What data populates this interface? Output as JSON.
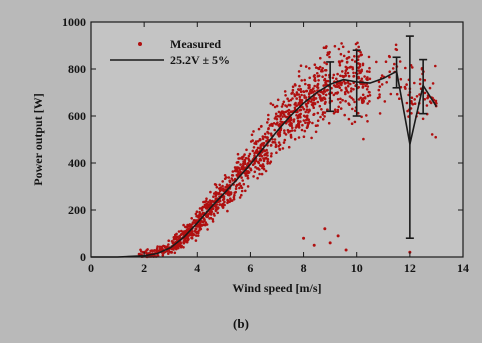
{
  "chart_data": {
    "type": "scatter",
    "xlabel": "Wind speed [m/s]",
    "ylabel": "Power output [W]",
    "xlim": [
      0,
      14
    ],
    "ylim": [
      0,
      1000
    ],
    "xticks": [
      0,
      2,
      4,
      6,
      8,
      10,
      12,
      14
    ],
    "yticks": [
      0,
      200,
      400,
      600,
      800,
      1000
    ],
    "grid": false,
    "legend_position": "top-left",
    "caption": "(b)",
    "colors": {
      "measured": "#b01010",
      "fit": "#1a1a1a",
      "background": "#b9b9b9",
      "plot_area": "#c4c4c4"
    },
    "series": [
      {
        "name": "Measured",
        "kind": "scatter",
        "description_points": [
          [
            2.0,
            5
          ],
          [
            2.5,
            15
          ],
          [
            3.0,
            40
          ],
          [
            3.5,
            85
          ],
          [
            4.0,
            145
          ],
          [
            4.5,
            210
          ],
          [
            5.0,
            270
          ],
          [
            5.5,
            330
          ],
          [
            6.0,
            395
          ],
          [
            6.5,
            465
          ],
          [
            7.0,
            535
          ],
          [
            7.5,
            600
          ],
          [
            8.0,
            655
          ],
          [
            8.5,
            700
          ],
          [
            9.0,
            735
          ],
          [
            9.5,
            755
          ],
          [
            10.0,
            745
          ],
          [
            10.5,
            740
          ],
          [
            11.0,
            760
          ],
          [
            11.5,
            790
          ],
          [
            12.0,
            720
          ],
          [
            12.5,
            710
          ],
          [
            13.0,
            640
          ]
        ],
        "outliers": [
          [
            8.0,
            80
          ],
          [
            8.4,
            50
          ],
          [
            9.0,
            60
          ],
          [
            9.3,
            90
          ],
          [
            9.6,
            30
          ],
          [
            8.8,
            120
          ],
          [
            12.0,
            20
          ]
        ]
      },
      {
        "name": "25.2V ± 5%",
        "kind": "line",
        "x": [
          0,
          1,
          2,
          2.5,
          3,
          3.5,
          4,
          4.5,
          5,
          5.5,
          6,
          6.5,
          7,
          7.5,
          8,
          8.5,
          9,
          9.5,
          10,
          10.5,
          11,
          11.5,
          12,
          12.5,
          13
        ],
        "y": [
          0,
          0,
          5,
          15,
          40,
          85,
          145,
          210,
          270,
          330,
          395,
          465,
          535,
          600,
          655,
          700,
          735,
          755,
          745,
          740,
          760,
          790,
          480,
          730,
          640
        ],
        "error_bars": [
          {
            "x": 9.0,
            "y": 735,
            "low": 620,
            "high": 830
          },
          {
            "x": 10.0,
            "y": 745,
            "low": 600,
            "high": 880
          },
          {
            "x": 11.5,
            "y": 790,
            "low": 720,
            "high": 850
          },
          {
            "x": 12.0,
            "y": 480,
            "low": 80,
            "high": 940
          },
          {
            "x": 12.5,
            "y": 730,
            "low": 610,
            "high": 840
          }
        ]
      }
    ]
  }
}
